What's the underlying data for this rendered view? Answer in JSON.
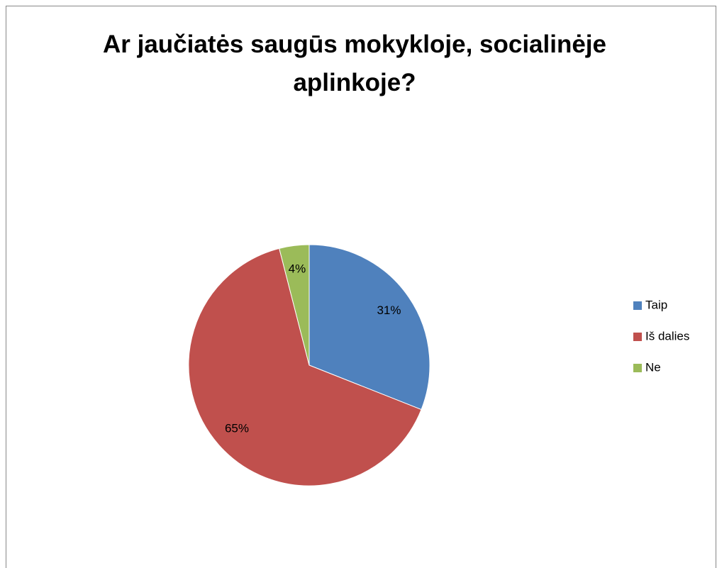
{
  "chart_data": {
    "type": "pie",
    "title": "Ar jaučiatės saugūs mokykloje, socialinėje aplinkoje?",
    "categories": [
      "Taip",
      "Iš dalies",
      "Ne"
    ],
    "values": [
      31,
      65,
      4
    ],
    "value_labels": [
      "31%",
      "65%",
      "4%"
    ],
    "colors": [
      "#4f81bd",
      "#c0504d",
      "#9bbb59"
    ],
    "legend": "right"
  }
}
